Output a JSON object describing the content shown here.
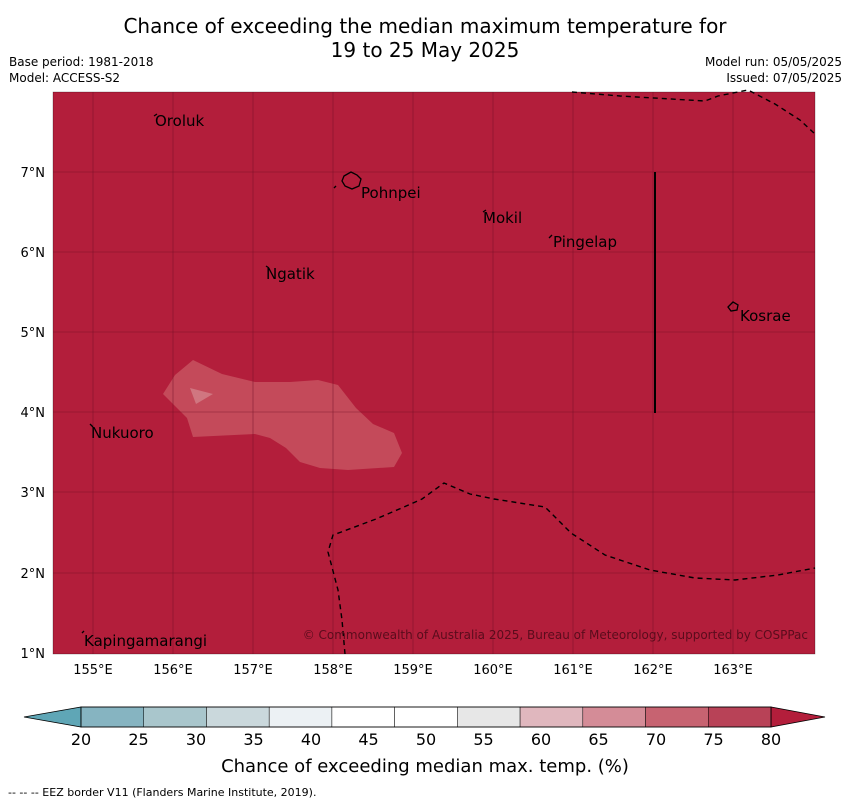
{
  "header": {
    "title_line1": "Chance of exceeding the median maximum temperature for",
    "title_line2": "19 to 25 May 2025",
    "base_period": "Base period: 1981-2018",
    "model": "Model: ACCESS-S2",
    "model_run": "Model run: 05/05/2025",
    "issued": "Issued: 07/05/2025"
  },
  "map": {
    "background_color": "#b31e3b",
    "lat_labels": [
      "7°N",
      "6°N",
      "5°N",
      "4°N",
      "3°N",
      "2°N",
      "1°N"
    ],
    "lon_labels": [
      "155°E",
      "156°E",
      "157°E",
      "158°E",
      "159°E",
      "160°E",
      "161°E",
      "162°E",
      "163°E"
    ],
    "places": [
      "Oroluk",
      "Pohnpei",
      "Mokil",
      "Pingelap",
      "Ngatik",
      "Kosrae",
      "Nukuoro",
      "Kapingamarangi"
    ],
    "copyright": "© Commonwealth of Australia 2025, Bureau of Meteorology, supported by COSPPac"
  },
  "colorbar": {
    "ticks": [
      "20",
      "25",
      "30",
      "35",
      "40",
      "45",
      "50",
      "55",
      "60",
      "65",
      "70",
      "75",
      "80"
    ],
    "colors": [
      "#5fa6b6",
      "#86b4c1",
      "#a9c6cc",
      "#cad8dc",
      "#ecf1f4",
      "#ffffff",
      "#ffffff",
      "#e7e7e7",
      "#e0b7be",
      "#d48c97",
      "#c76371",
      "#b84257",
      "#b31e3b"
    ],
    "label": "Chance of exceeding median max. temp. (%)"
  },
  "footnote": "--  --  -- EEZ border V11 (Flanders Marine Institute, 2019)."
}
